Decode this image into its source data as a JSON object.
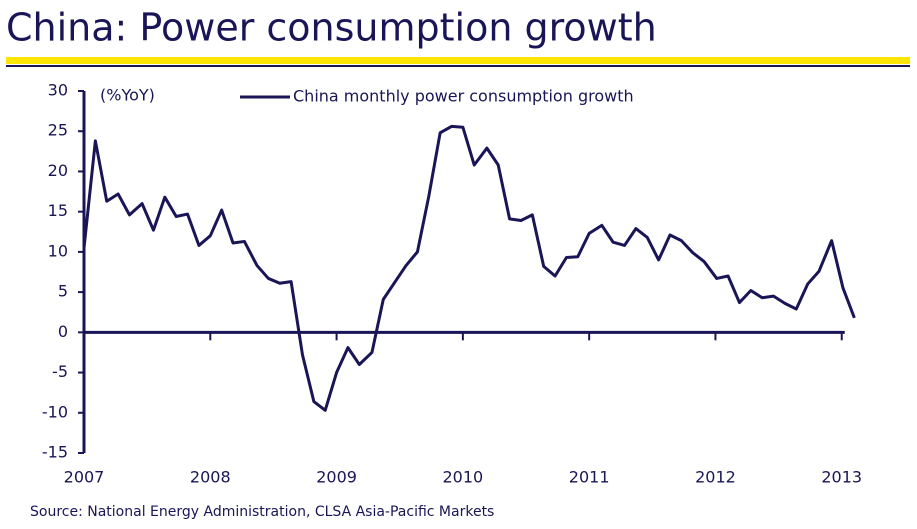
{
  "chart_data": {
    "type": "line",
    "title": "China: Power consumption growth",
    "y_label": "(%YoY)",
    "source": "Source: National Energy Administration, CLSA Asia-Pacific Markets",
    "xlim": [
      2007,
      2013.2
    ],
    "xticks": [
      2007,
      2008,
      2009,
      2010,
      2011,
      2012,
      2013
    ],
    "ylim": [
      -15,
      30
    ],
    "yticks": [
      -15,
      -10,
      -5,
      0,
      5,
      10,
      15,
      20,
      25,
      30
    ],
    "grid": false,
    "legend": "top",
    "x": [
      2007.0,
      2007.09,
      2007.18,
      2007.27,
      2007.36,
      2007.46,
      2007.55,
      2007.64,
      2007.73,
      2007.82,
      2007.91,
      2008.0,
      2008.09,
      2008.18,
      2008.27,
      2008.37,
      2008.46,
      2008.55,
      2008.64,
      2008.73,
      2008.82,
      2008.91,
      2009.0,
      2009.09,
      2009.18,
      2009.28,
      2009.37,
      2009.46,
      2009.55,
      2009.64,
      2009.73,
      2009.82,
      2009.91,
      2010.0,
      2010.09,
      2010.19,
      2010.28,
      2010.37,
      2010.46,
      2010.55,
      2010.64,
      2010.73,
      2010.82,
      2010.91,
      2011.0,
      2011.1,
      2011.19,
      2011.28,
      2011.37,
      2011.46,
      2011.55,
      2011.64,
      2011.73,
      2011.82,
      2011.91,
      2012.01,
      2012.1,
      2012.19,
      2012.28,
      2012.37,
      2012.46,
      2012.55,
      2012.64,
      2012.73,
      2012.82,
      2012.92,
      2013.01,
      2013.1
    ],
    "series": [
      {
        "name": "China monthly power consumption growth",
        "color": "#1a1557",
        "values": [
          10.5,
          23.8,
          16.3,
          17.2,
          14.6,
          16.0,
          12.7,
          16.8,
          14.4,
          14.7,
          10.8,
          12.0,
          15.2,
          11.1,
          11.3,
          8.3,
          6.7,
          6.1,
          6.3,
          -2.8,
          -8.6,
          -9.7,
          -5.0,
          -1.9,
          -4.0,
          -2.5,
          4.1,
          6.2,
          8.3,
          10.0,
          16.9,
          24.8,
          25.6,
          25.5,
          20.8,
          22.9,
          20.8,
          14.1,
          13.9,
          14.6,
          8.2,
          7.0,
          9.3,
          9.4,
          12.3,
          13.3,
          11.2,
          10.8,
          12.9,
          11.8,
          9.0,
          12.1,
          11.4,
          9.9,
          8.8,
          6.7,
          7.0,
          3.7,
          5.2,
          4.3,
          4.5,
          3.6,
          2.9,
          6.0,
          7.6,
          11.4,
          5.5,
          1.8
        ]
      }
    ]
  }
}
